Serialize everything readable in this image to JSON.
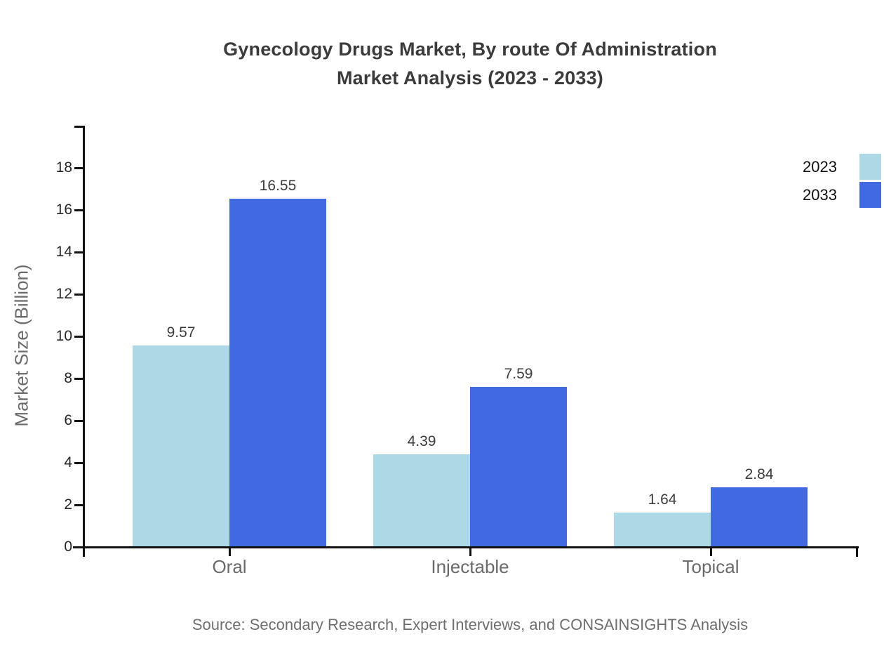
{
  "title": {
    "line1": "Gynecology Drugs Market, By route Of Administration",
    "line2": "Market Analysis (2023 - 2033)"
  },
  "source": "Source: Secondary Research, Expert Interviews, and CONSAINSIGHTS Analysis",
  "chart_data": {
    "type": "bar",
    "title": "Gynecology Drugs Market, By route Of Administration Market Analysis (2023 - 2033)",
    "categories": [
      "Oral",
      "Injectable",
      "Topical"
    ],
    "series": [
      {
        "name": "2023",
        "color": "#ADD8E6",
        "values": [
          9.57,
          4.39,
          1.64
        ]
      },
      {
        "name": "2033",
        "color": "#4169E1",
        "values": [
          16.55,
          7.59,
          2.84
        ]
      }
    ],
    "xlabel": "",
    "ylabel": "Market Size (Billion)",
    "ylim": [
      0,
      20
    ],
    "yticks": [
      0,
      2,
      4,
      6,
      8,
      10,
      12,
      14,
      16,
      18
    ],
    "grid": false,
    "legend_position": "top-right",
    "value_labels": true
  },
  "colors": {
    "series_2023": "#ADD8E6",
    "series_2033": "#4169E1",
    "axis": "#111111",
    "title_text": "#3b3b3b",
    "muted_text": "#6b6b6b"
  }
}
